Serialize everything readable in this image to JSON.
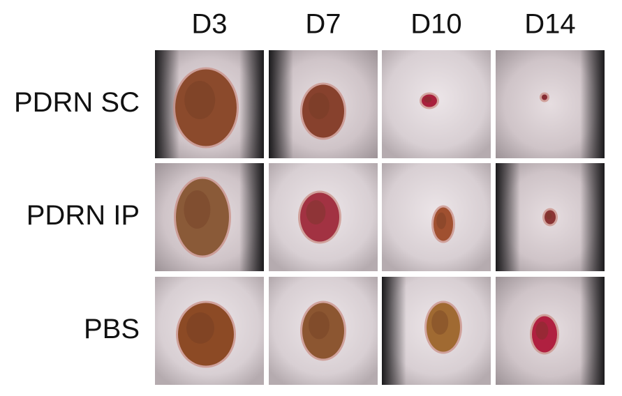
{
  "columns": [
    "D3",
    "D7",
    "D10",
    "D14"
  ],
  "rows": [
    "PDRN SC",
    "PDRN IP",
    "PBS"
  ]
}
